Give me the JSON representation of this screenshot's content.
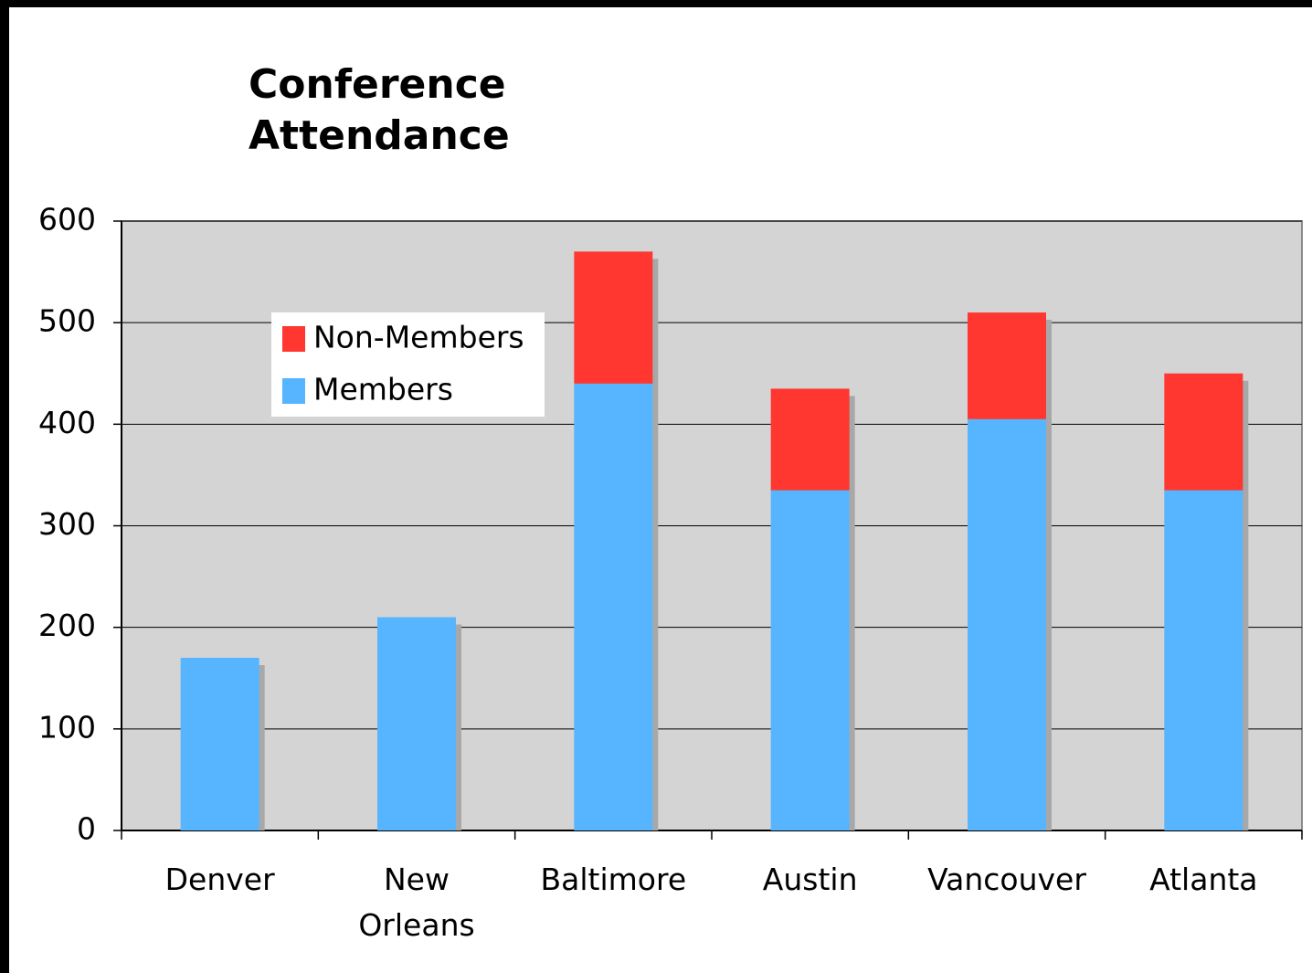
{
  "chart_data": {
    "type": "stacked_bar",
    "title": "Conference Attendance",
    "categories": [
      "Denver",
      "New Orleans",
      "Baltimore",
      "Austin",
      "Vancouver",
      "Atlanta"
    ],
    "series": [
      {
        "name": "Members",
        "color": "#57b4ff",
        "values": [
          170,
          210,
          440,
          335,
          405,
          335
        ]
      },
      {
        "name": "Non-Members",
        "color": "#ff3730",
        "values": [
          0,
          0,
          130,
          100,
          105,
          115
        ]
      }
    ],
    "ylim": [
      0,
      600
    ],
    "yticks": [
      0,
      100,
      200,
      300,
      400,
      500,
      600
    ],
    "grid": true,
    "legend": "upper left"
  }
}
